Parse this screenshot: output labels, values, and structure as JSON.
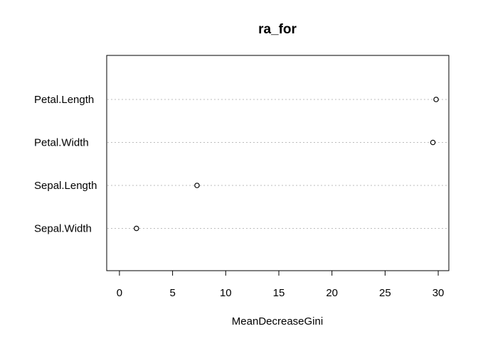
{
  "chart_data": {
    "type": "scatter",
    "title": "ra_for",
    "xlabel": "MeanDecreaseGini",
    "ylabel": "",
    "xlim": [
      -1.2,
      31
    ],
    "x_ticks": [
      0,
      5,
      10,
      15,
      20,
      25,
      30
    ],
    "categories": [
      "Petal.Length",
      "Petal.Width",
      "Sepal.Length",
      "Sepal.Width"
    ],
    "values": [
      29.8,
      29.5,
      7.3,
      1.6
    ],
    "grid": "dotted horizontal guide lines",
    "legend": "none",
    "marker": "open circle"
  }
}
